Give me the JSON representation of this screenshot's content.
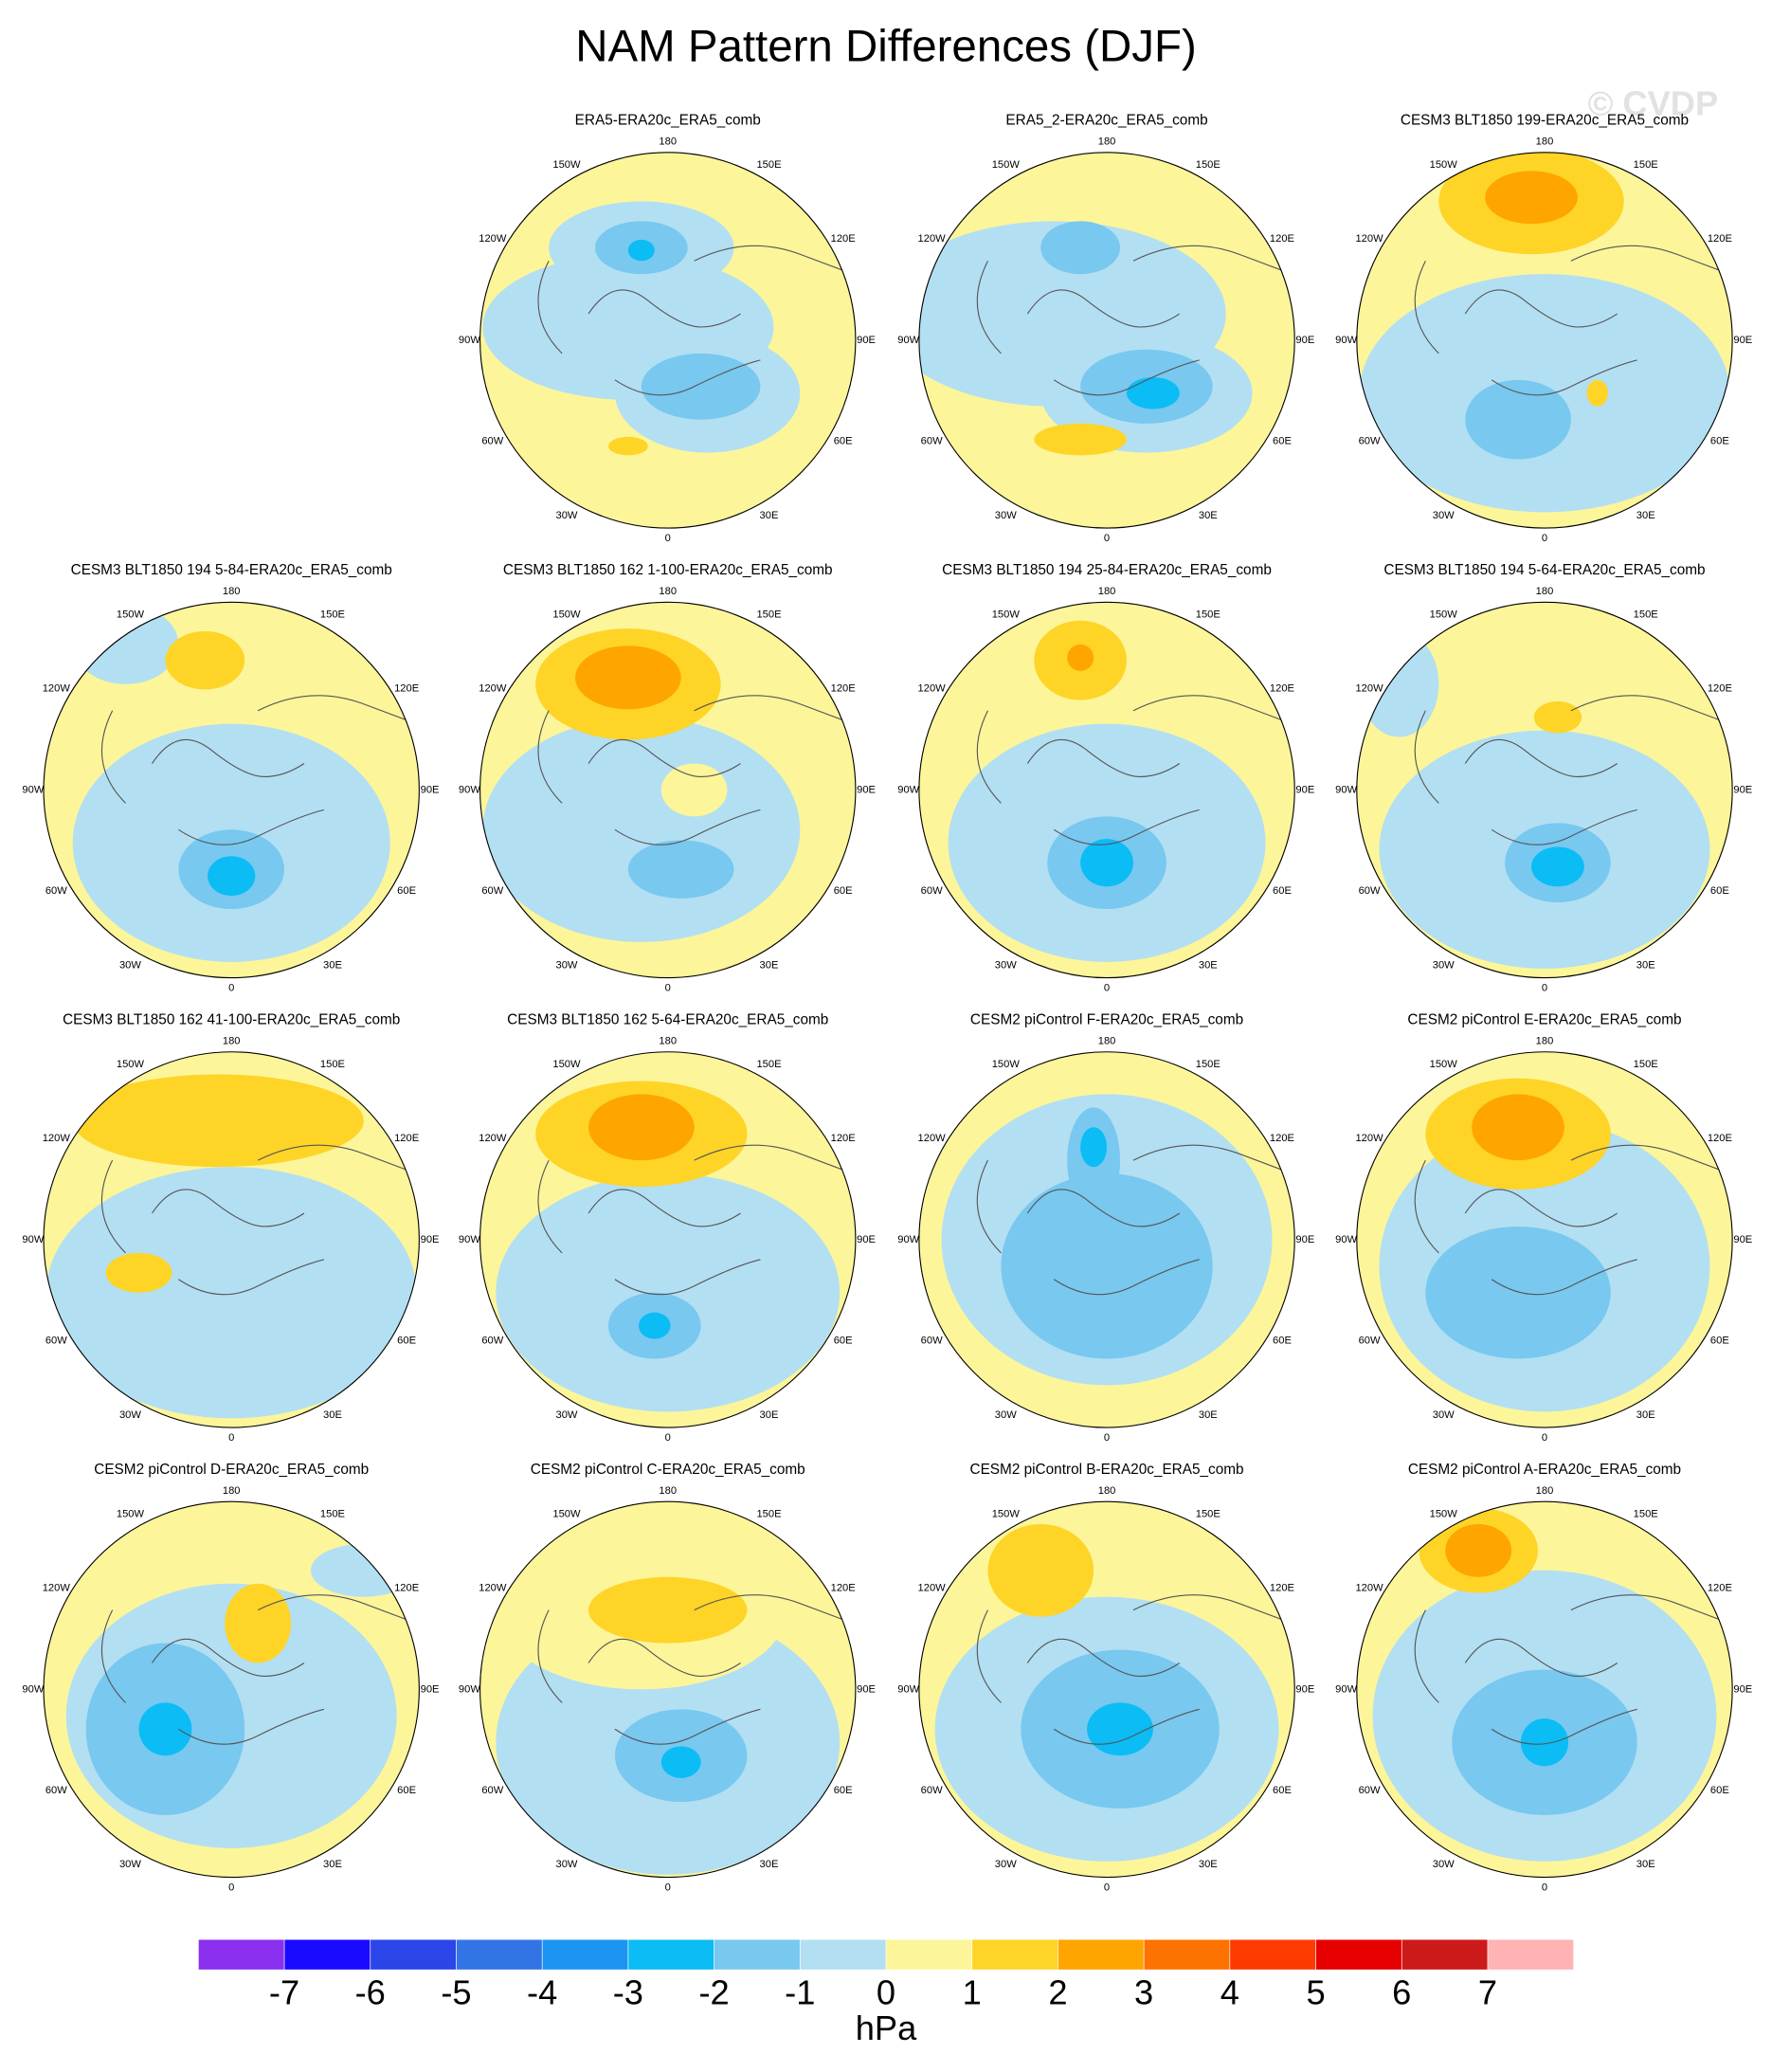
{
  "chart_data": {
    "type": "polar-map-panels",
    "title": "NAM Pattern Differences (DJF)",
    "watermark": "© CVDP",
    "panels": [
      {
        "title": "ERA5-ERA20c_ERA5_comb"
      },
      {
        "title": "ERA5_2-ERA20c_ERA5_comb"
      },
      {
        "title": "CESM3 BLT1850 199-ERA20c_ERA5_comb"
      },
      {
        "title": "CESM3 BLT1850 194 5-84-ERA20c_ERA5_comb"
      },
      {
        "title": "CESM3 BLT1850 162 1-100-ERA20c_ERA5_comb"
      },
      {
        "title": "CESM3 BLT1850 194 25-84-ERA20c_ERA5_comb"
      },
      {
        "title": "CESM3 BLT1850 194 5-64-ERA20c_ERA5_comb"
      },
      {
        "title": "CESM3 BLT1850 162 41-100-ERA20c_ERA5_comb"
      },
      {
        "title": "CESM3 BLT1850 162 5-64-ERA20c_ERA5_comb"
      },
      {
        "title": "CESM2 piControl F-ERA20c_ERA5_comb"
      },
      {
        "title": "CESM2 piControl E-ERA20c_ERA5_comb"
      },
      {
        "title": "CESM2 piControl D-ERA20c_ERA5_comb"
      },
      {
        "title": "CESM2 piControl C-ERA20c_ERA5_comb"
      },
      {
        "title": "CESM2 piControl B-ERA20c_ERA5_comb"
      },
      {
        "title": "CESM2 piControl A-ERA20c_ERA5_comb"
      }
    ],
    "longitude_labels": [
      "180",
      "150E",
      "120E",
      "90E",
      "60E",
      "30E",
      "0",
      "30W",
      "60W",
      "90W",
      "120W",
      "150W"
    ],
    "colorbar": {
      "levels": [
        -7,
        -6,
        -5,
        -4,
        -3,
        -2,
        -1,
        0,
        1,
        2,
        3,
        4,
        5,
        6,
        7
      ],
      "colors": [
        "#8a30ee",
        "#1a0aff",
        "#2b45e8",
        "#3274e5",
        "#1c95f2",
        "#0bbcf5",
        "#78c8f0",
        "#b3dff2",
        "#fcf59a",
        "#fed427",
        "#fea500",
        "#fd7200",
        "#fd3a00",
        "#e60000",
        "#cc1a1a",
        "#ffb3b3"
      ],
      "label": "hPa"
    }
  }
}
